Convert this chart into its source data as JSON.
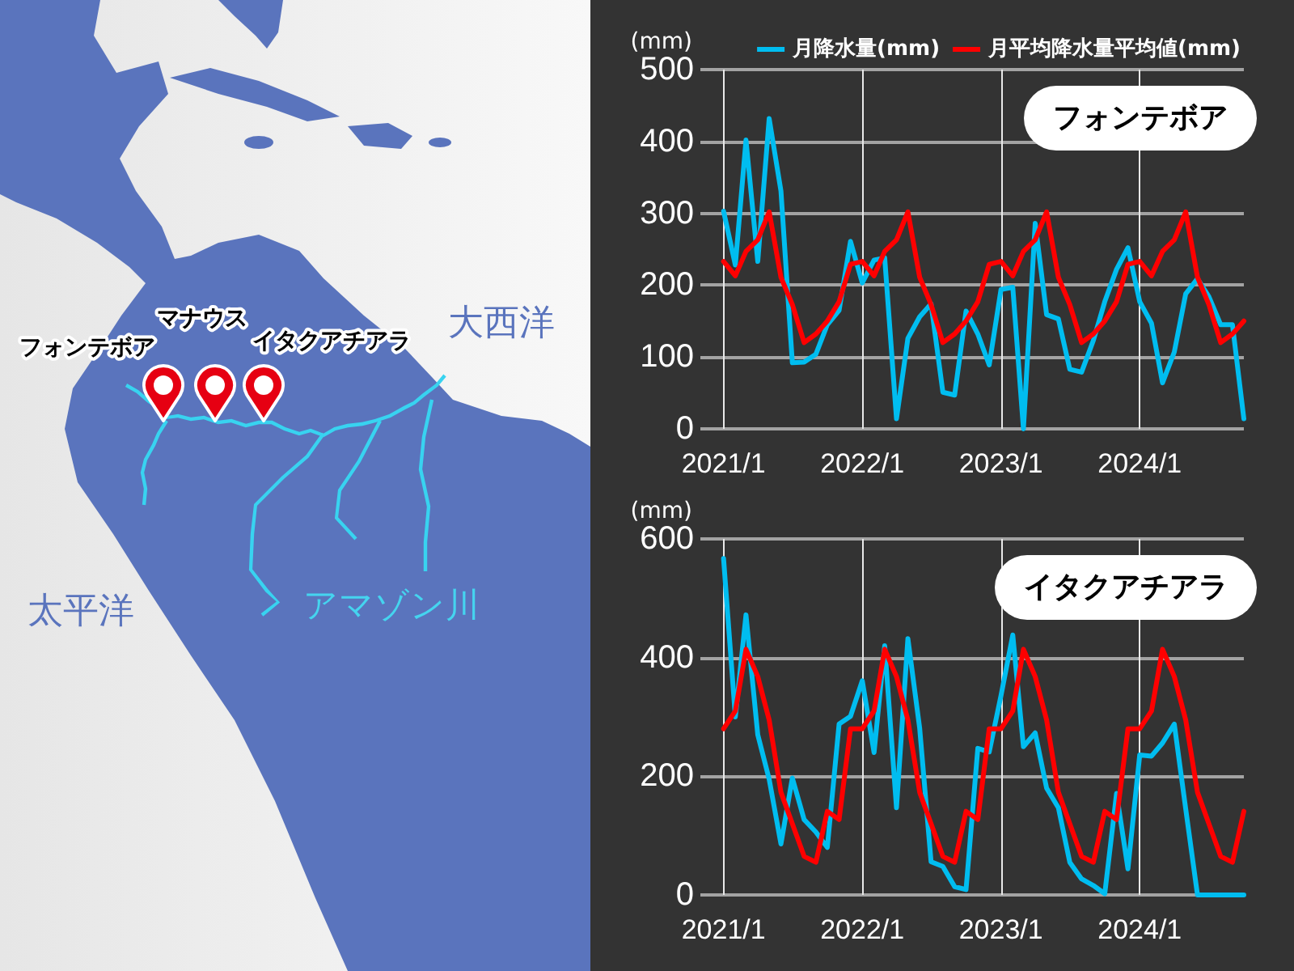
{
  "chart_data": [
    {
      "type": "other",
      "annotations": [
        "フォンテボア",
        "マナウス",
        "イタクアチアラ",
        "大西洋",
        "太平洋",
        "アマゾン川"
      ]
    },
    {
      "type": "line",
      "title": "フォンテボア",
      "ylabel": "(mm)",
      "x": [
        "2021-01",
        "2021-02",
        "2021-03",
        "2021-04",
        "2021-05",
        "2021-06",
        "2021-07",
        "2021-08",
        "2021-09",
        "2021-10",
        "2021-11",
        "2021-12",
        "2022-01",
        "2022-02",
        "2022-03",
        "2022-04",
        "2022-05",
        "2022-06",
        "2022-07",
        "2022-08",
        "2022-09",
        "2022-10",
        "2022-11",
        "2022-12",
        "2023-01",
        "2023-02",
        "2023-03",
        "2023-04",
        "2023-05",
        "2023-06",
        "2023-07",
        "2023-08",
        "2023-09",
        "2023-10",
        "2023-11",
        "2023-12",
        "2024-01",
        "2024-02",
        "2024-03",
        "2024-04",
        "2024-05",
        "2024-06",
        "2024-07",
        "2024-08",
        "2024-09",
        "2024-10"
      ],
      "xlim": [
        "2020-11",
        "2024-10"
      ],
      "xticks": [
        {
          "value": "2021-01",
          "label": "2021/1"
        },
        {
          "value": "2022-01",
          "label": "2022/1"
        },
        {
          "value": "2023-01",
          "label": "2023/1"
        },
        {
          "value": "2024-01",
          "label": "2024/1"
        }
      ],
      "ylim": [
        0,
        500
      ],
      "yticks": [
        0,
        100,
        200,
        300,
        400,
        500
      ],
      "grid": true,
      "legend": "top",
      "series": [
        {
          "name": "月降水量(mm)",
          "color": "#00bdf0",
          "values": [
            303,
            228,
            402,
            233,
            432,
            331,
            92,
            93,
            104,
            145,
            165,
            261,
            203,
            235,
            238,
            14,
            126,
            156,
            174,
            51,
            47,
            164,
            132,
            89,
            194,
            197,
            0,
            286,
            159,
            153,
            83,
            79,
            123,
            177,
            222,
            252,
            177,
            147,
            64,
            107,
            188,
            209,
            184,
            145,
            145,
            14
          ]
        },
        {
          "name": "月平均降水量平均値(mm)",
          "color": "#ff0000",
          "values": [
            233,
            213,
            247,
            263,
            302,
            211,
            173,
            120,
            132,
            150,
            177,
            229,
            233,
            213,
            247,
            263,
            302,
            211,
            173,
            120,
            132,
            150,
            177,
            229,
            233,
            213,
            247,
            263,
            302,
            211,
            173,
            120,
            132,
            150,
            177,
            229,
            233,
            213,
            247,
            263,
            302,
            211,
            173,
            120,
            132,
            150
          ]
        }
      ]
    },
    {
      "type": "line",
      "title": "イタクアチアラ",
      "ylabel": "(mm)",
      "x": [
        "2021-01",
        "2021-02",
        "2021-03",
        "2021-04",
        "2021-05",
        "2021-06",
        "2021-07",
        "2021-08",
        "2021-09",
        "2021-10",
        "2021-11",
        "2021-12",
        "2022-01",
        "2022-02",
        "2022-03",
        "2022-04",
        "2022-05",
        "2022-06",
        "2022-07",
        "2022-08",
        "2022-09",
        "2022-10",
        "2022-11",
        "2022-12",
        "2023-01",
        "2023-02",
        "2023-03",
        "2023-04",
        "2023-05",
        "2023-06",
        "2023-07",
        "2023-08",
        "2023-09",
        "2023-10",
        "2023-11",
        "2023-12",
        "2024-01",
        "2024-02",
        "2024-03",
        "2024-04",
        "2024-05",
        "2024-06",
        "2024-07",
        "2024-08",
        "2024-09",
        "2024-10"
      ],
      "xlim": [
        "2020-11",
        "2024-10"
      ],
      "xticks": [
        {
          "value": "2021-01",
          "label": "2021/1"
        },
        {
          "value": "2022-01",
          "label": "2022/1"
        },
        {
          "value": "2023-01",
          "label": "2023/1"
        },
        {
          "value": "2024-01",
          "label": "2024/1"
        }
      ],
      "ylim": [
        0,
        600
      ],
      "yticks": [
        0,
        200,
        400,
        600
      ],
      "grid": true,
      "series": [
        {
          "color": "#00bdf0",
          "values": [
            567,
            300,
            472,
            270,
            195,
            86,
            197,
            127,
            106,
            80,
            288,
            301,
            361,
            240,
            420,
            147,
            432,
            281,
            56,
            48,
            14,
            9,
            247,
            241,
            336,
            438,
            250,
            273,
            180,
            147,
            55,
            27,
            16,
            2,
            171,
            44,
            236,
            234,
            256,
            288,
            145,
            0,
            0,
            0,
            0,
            0
          ]
        },
        {
          "color": "#ff0000",
          "values": [
            280,
            310,
            414,
            368,
            295,
            173,
            120,
            65,
            55,
            141,
            127,
            280,
            280,
            310,
            414,
            368,
            295,
            173,
            120,
            65,
            55,
            141,
            127,
            280,
            280,
            310,
            414,
            368,
            295,
            173,
            120,
            65,
            55,
            141,
            127,
            280,
            280,
            310,
            414,
            368,
            295,
            173,
            120,
            65,
            55,
            141
          ]
        }
      ]
    }
  ]
}
